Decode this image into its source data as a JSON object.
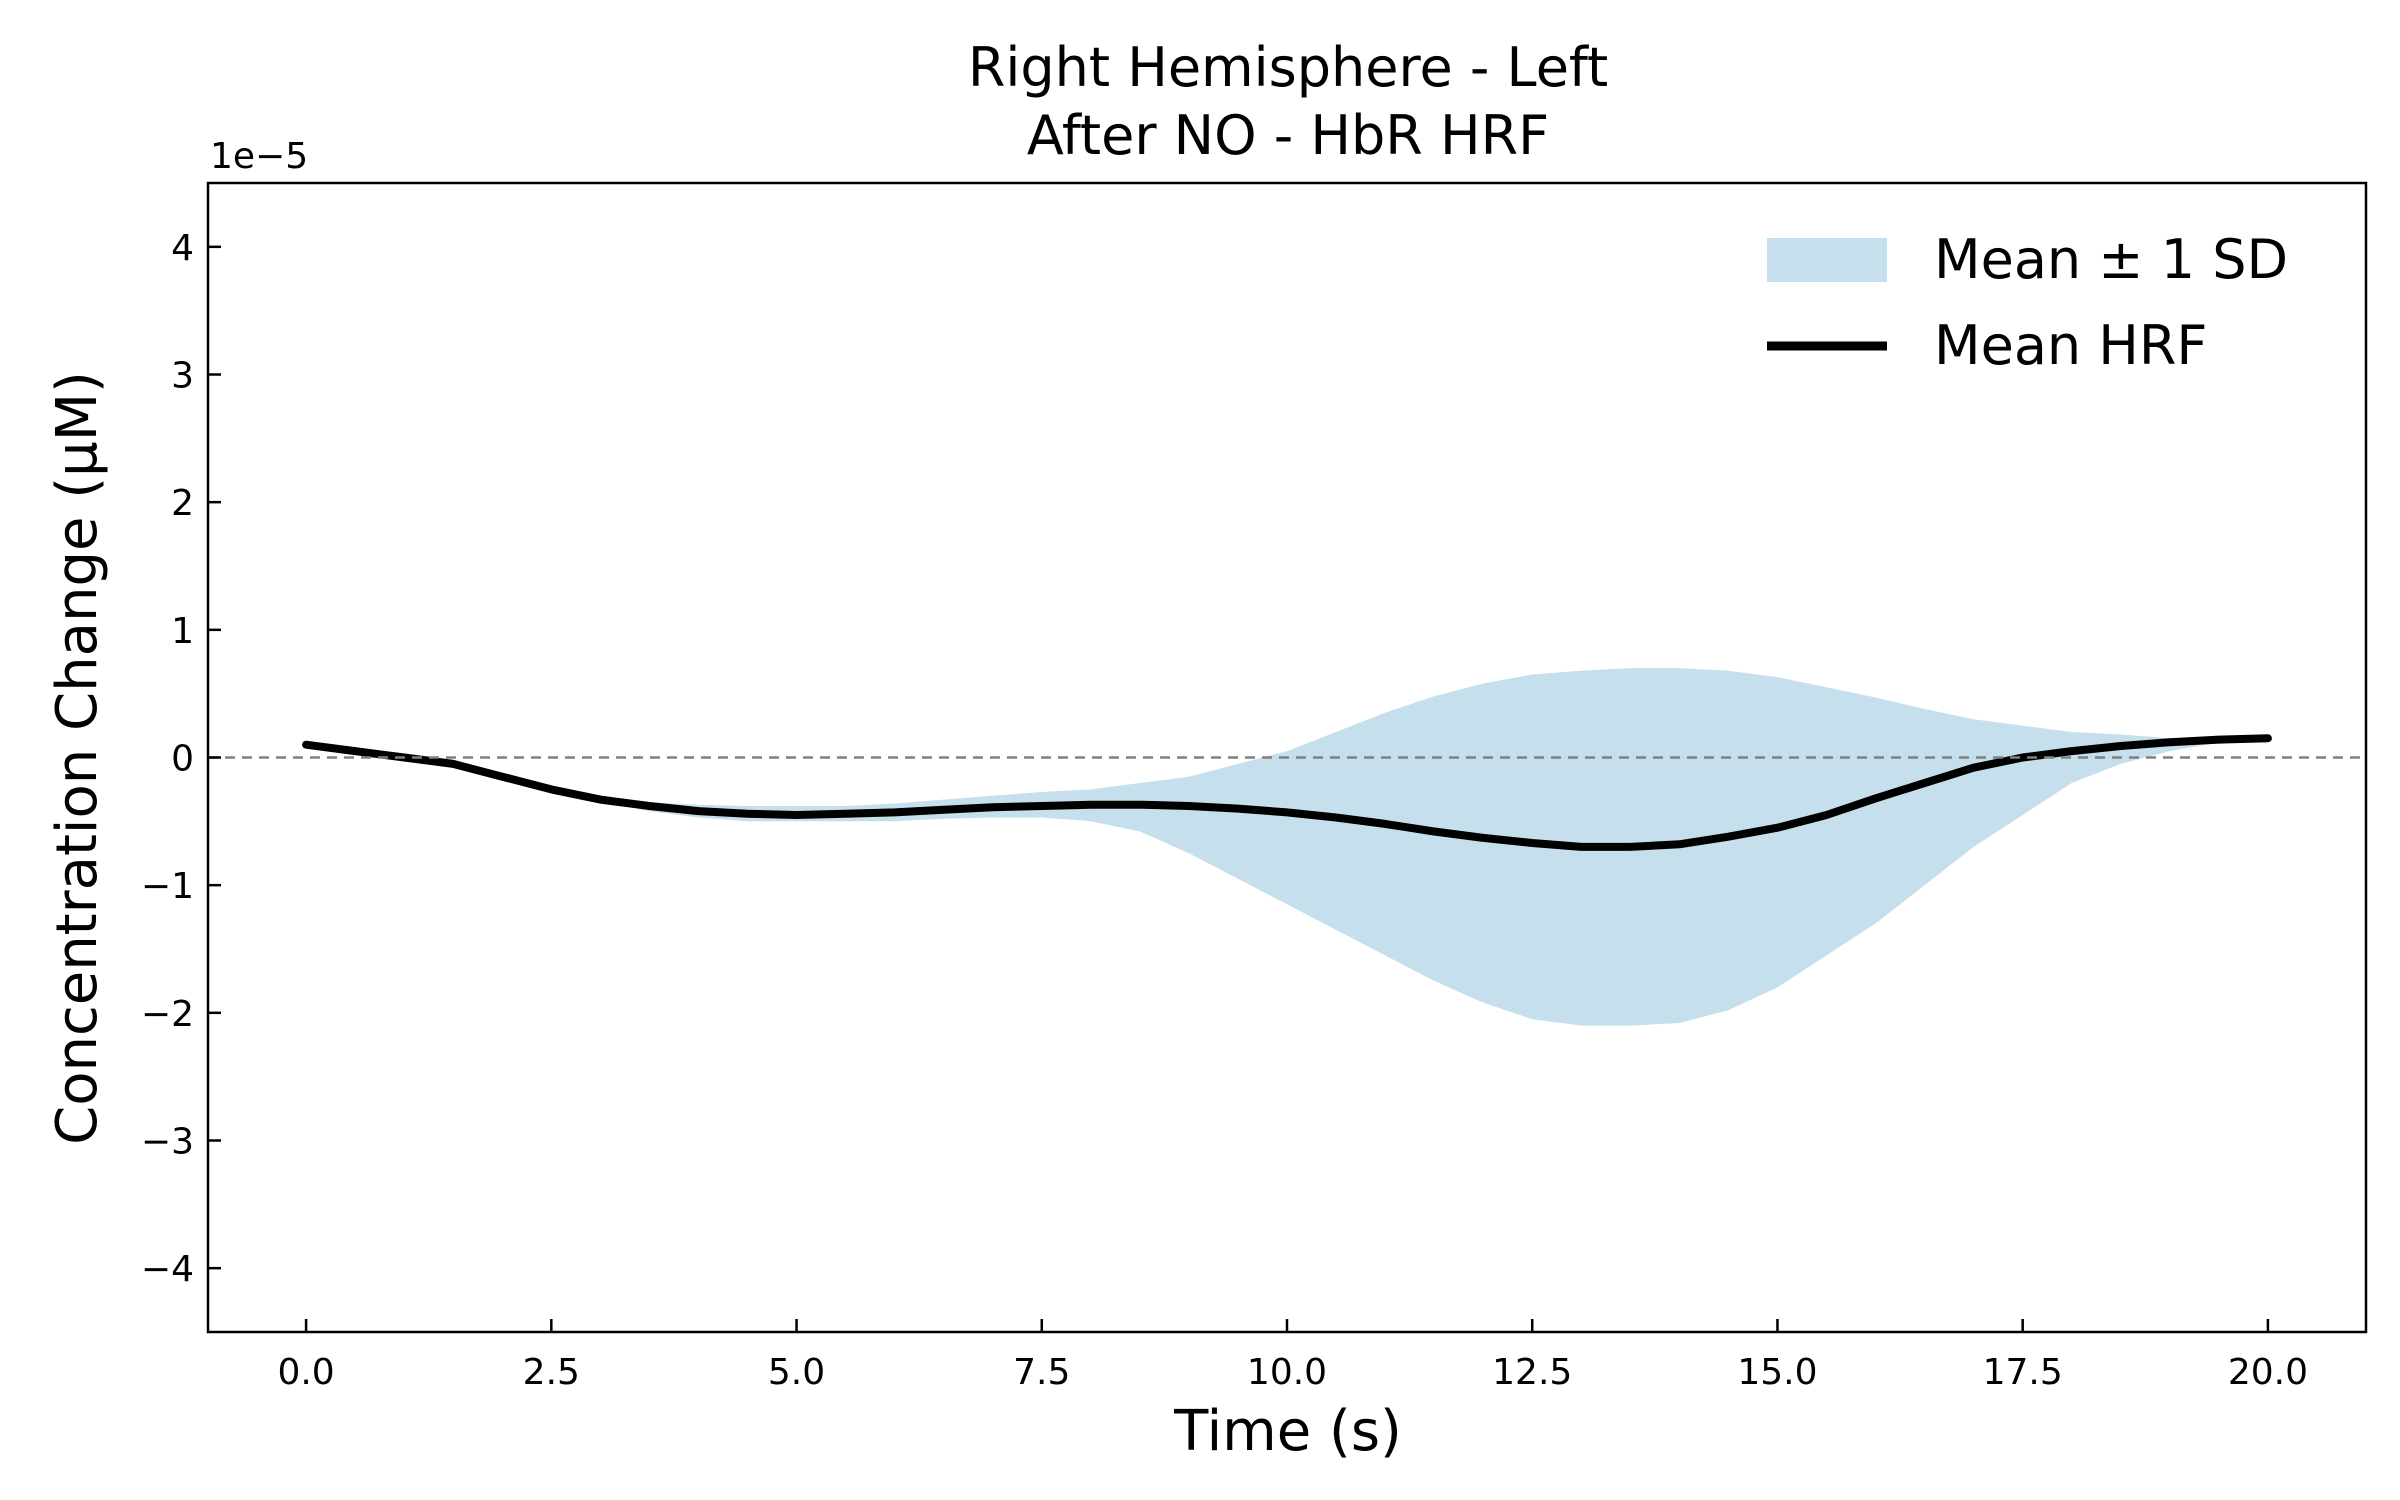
{
  "chart_data": {
    "type": "area",
    "title_lines": [
      "Right Hemisphere - Left",
      "After NO - HbR HRF"
    ],
    "xlabel": "Time (s)",
    "ylabel": "Concentration Change (μM)",
    "y_offset_label": "1e−5",
    "xlim": [
      -1,
      21
    ],
    "ylim": [
      -4.5,
      4.5
    ],
    "x_ticks": [
      0,
      2.5,
      5,
      7.5,
      10,
      12.5,
      15,
      17.5,
      20
    ],
    "x_tick_labels": [
      "0.0",
      "2.5",
      "5.0",
      "7.5",
      "10.0",
      "12.5",
      "15.0",
      "17.5",
      "20.0"
    ],
    "y_ticks": [
      -4,
      -3,
      -2,
      -1,
      0,
      1,
      2,
      3,
      4
    ],
    "y_tick_labels": [
      "−4",
      "−3",
      "−2",
      "−1",
      "0",
      "1",
      "2",
      "3",
      "4"
    ],
    "zero_line": true,
    "grid": false,
    "legend_position": "top-right",
    "series": [
      {
        "name": "Mean ± 1 SD",
        "kind": "band",
        "color": "#c6dfed",
        "x": [
          0,
          0.5,
          1,
          1.5,
          2,
          2.5,
          3,
          3.5,
          4,
          4.5,
          5,
          5.5,
          6,
          6.5,
          7,
          7.5,
          8,
          8.5,
          9,
          9.5,
          10,
          10.5,
          11,
          11.5,
          12,
          12.5,
          13,
          13.5,
          14,
          14.5,
          15,
          15.5,
          16,
          16.5,
          17,
          17.5,
          18,
          18.5,
          19,
          19.5,
          20
        ],
        "lower": [
          0.1,
          0.05,
          0.0,
          -0.05,
          -0.15,
          -0.25,
          -0.35,
          -0.42,
          -0.47,
          -0.5,
          -0.5,
          -0.5,
          -0.5,
          -0.48,
          -0.47,
          -0.47,
          -0.5,
          -0.58,
          -0.75,
          -0.95,
          -1.15,
          -1.35,
          -1.55,
          -1.75,
          -1.92,
          -2.05,
          -2.1,
          -2.1,
          -2.08,
          -1.98,
          -1.8,
          -1.55,
          -1.3,
          -1.0,
          -0.7,
          -0.45,
          -0.2,
          -0.05,
          0.05,
          0.12,
          0.15
        ],
        "upper": [
          0.1,
          0.05,
          0.0,
          -0.05,
          -0.15,
          -0.22,
          -0.3,
          -0.35,
          -0.37,
          -0.38,
          -0.38,
          -0.38,
          -0.36,
          -0.33,
          -0.3,
          -0.27,
          -0.25,
          -0.2,
          -0.15,
          -0.05,
          0.05,
          0.2,
          0.35,
          0.48,
          0.58,
          0.65,
          0.68,
          0.7,
          0.7,
          0.68,
          0.63,
          0.55,
          0.47,
          0.38,
          0.3,
          0.25,
          0.2,
          0.18,
          0.15,
          0.15,
          0.15
        ]
      },
      {
        "name": "Mean HRF",
        "kind": "line",
        "color": "#000000",
        "x": [
          0,
          0.5,
          1,
          1.5,
          2,
          2.5,
          3,
          3.5,
          4,
          4.5,
          5,
          5.5,
          6,
          6.5,
          7,
          7.5,
          8,
          8.5,
          9,
          9.5,
          10,
          10.5,
          11,
          11.5,
          12,
          12.5,
          13,
          13.5,
          14,
          14.5,
          15,
          15.5,
          16,
          16.5,
          17,
          17.5,
          18,
          18.5,
          19,
          19.5,
          20
        ],
        "y": [
          0.1,
          0.05,
          0.0,
          -0.05,
          -0.15,
          -0.25,
          -0.33,
          -0.38,
          -0.42,
          -0.44,
          -0.45,
          -0.44,
          -0.43,
          -0.41,
          -0.39,
          -0.38,
          -0.37,
          -0.37,
          -0.38,
          -0.4,
          -0.43,
          -0.47,
          -0.52,
          -0.58,
          -0.63,
          -0.67,
          -0.7,
          -0.7,
          -0.68,
          -0.62,
          -0.55,
          -0.45,
          -0.32,
          -0.2,
          -0.08,
          0.0,
          0.05,
          0.09,
          0.12,
          0.14,
          0.15
        ]
      }
    ]
  }
}
